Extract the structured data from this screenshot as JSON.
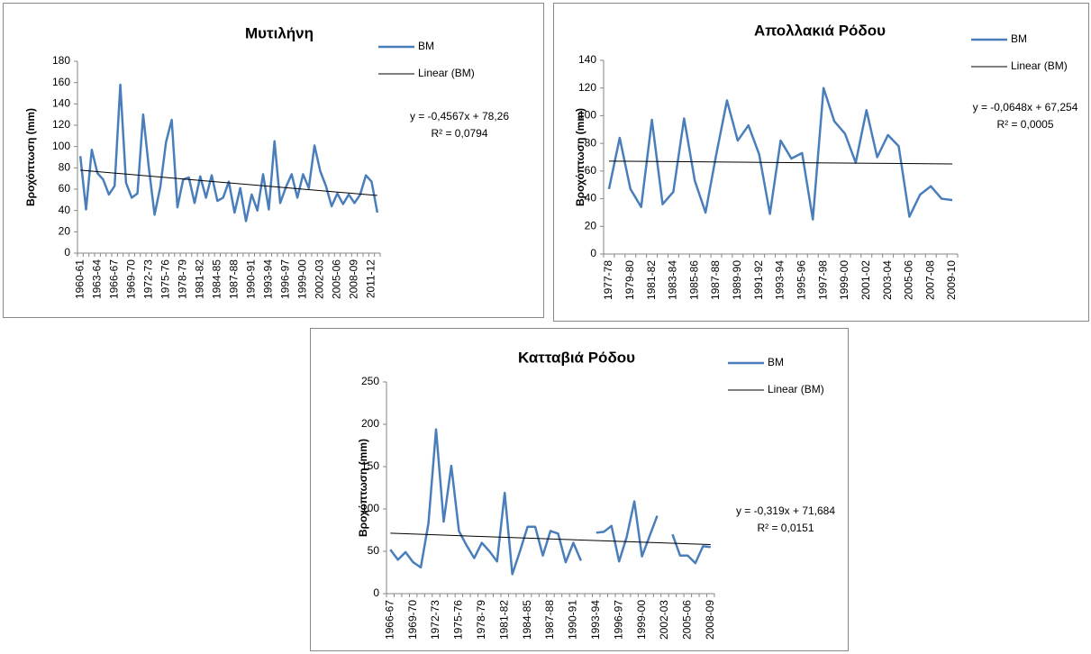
{
  "chart_data": [
    {
      "type": "line",
      "title": "Μυτιλήνη",
      "y_label": "Βροχόπτωση (mm)",
      "categories": [
        "1960-61",
        null,
        null,
        "1963-64",
        null,
        null,
        "1966-67",
        null,
        null,
        "1969-70",
        null,
        null,
        "1972-73",
        null,
        null,
        "1975-76",
        null,
        null,
        "1978-79",
        null,
        null,
        "1981-82",
        null,
        null,
        "1984-85",
        null,
        null,
        "1987-88",
        null,
        null,
        "1990-91",
        null,
        null,
        "1993-94",
        null,
        null,
        "1996-97",
        null,
        null,
        "1999-00",
        null,
        null,
        "2002-03",
        null,
        null,
        "2005-06",
        null,
        null,
        "2008-09",
        null,
        null,
        "2011-12",
        null
      ],
      "series": [
        {
          "name": "BM",
          "color": "#4a7ebb",
          "values": [
            91,
            41,
            97,
            75,
            69,
            55,
            63,
            158,
            66,
            52,
            56,
            130,
            80,
            36,
            62,
            104,
            125,
            43,
            69,
            71,
            47,
            72,
            52,
            73,
            49,
            52,
            67,
            38,
            61,
            30,
            55,
            40,
            74,
            41,
            105,
            47,
            62,
            74,
            52,
            74,
            61,
            101,
            77,
            63,
            44,
            56,
            46,
            55,
            47,
            55,
            73,
            67,
            38
          ]
        }
      ],
      "trendline": {
        "name": "Linear (BM)",
        "color": "#000000",
        "slope": -0.4567,
        "intercept": 78.26,
        "equation": "y = -0,4567x + 78,26",
        "r_squared": "R² = 0,0794"
      },
      "ylim": [
        0,
        180
      ],
      "yticks": [
        0,
        20,
        40,
        60,
        80,
        100,
        120,
        140,
        160,
        180
      ]
    },
    {
      "type": "line",
      "title": "Απολλακιά Ρόδου",
      "y_label": "Βροχόπτωση (mm)",
      "categories": [
        "1977-78",
        null,
        "1979-80",
        null,
        "1981-82",
        null,
        "1983-84",
        null,
        "1985-86",
        null,
        "1987-88",
        null,
        "1989-90",
        null,
        "1991-92",
        null,
        "1993-94",
        null,
        "1995-96",
        null,
        "1997-98",
        null,
        "1999-00",
        null,
        "2001-02",
        null,
        "2003-04",
        null,
        "2005-06",
        null,
        "2007-08",
        null,
        "2009-10"
      ],
      "series": [
        {
          "name": "BM",
          "color": "#4a7ebb",
          "values": [
            47,
            84,
            47,
            34,
            97,
            36,
            45,
            98,
            53,
            30,
            72,
            111,
            82,
            93,
            72,
            29,
            82,
            69,
            73,
            25,
            120,
            96,
            87,
            66,
            104,
            70,
            86,
            78,
            27,
            43,
            49,
            40,
            39
          ]
        }
      ],
      "trendline": {
        "name": "Linear (BM)",
        "color": "#000000",
        "slope": -0.0648,
        "intercept": 67.254,
        "equation": "y = -0,0648x + 67,254",
        "r_squared": "R² = 0,0005"
      },
      "ylim": [
        0,
        140
      ],
      "yticks": [
        0,
        20,
        40,
        60,
        80,
        100,
        120,
        140
      ]
    },
    {
      "type": "line",
      "title": "Κατταβιά Ρόδου",
      "y_label": "Βροχόπτωση (mm)",
      "categories": [
        "1966-67",
        null,
        null,
        "1969-70",
        null,
        null,
        "1972-73",
        null,
        null,
        "1975-76",
        null,
        null,
        "1978-79",
        null,
        null,
        "1981-82",
        null,
        null,
        "1984-85",
        null,
        null,
        "1987-88",
        null,
        null,
        "1990-91",
        null,
        null,
        "1993-94",
        null,
        null,
        "1996-97",
        null,
        null,
        "1999-00",
        null,
        null,
        "2002-03",
        null,
        null,
        "2005-06",
        null,
        null,
        "2008-09"
      ],
      "series": [
        {
          "name": "BM",
          "color": "#4a7ebb",
          "values": [
            52,
            40,
            49,
            37,
            31,
            83,
            194,
            85,
            151,
            74,
            57,
            42,
            60,
            50,
            38,
            119,
            23,
            50,
            79,
            79,
            45,
            74,
            71,
            37,
            60,
            39,
            null,
            72,
            73,
            80,
            38,
            67,
            109,
            44,
            68,
            92,
            null,
            70,
            45,
            45,
            36,
            56,
            55
          ]
        }
      ],
      "trendline": {
        "name": "Linear (BM)",
        "color": "#000000",
        "slope": -0.319,
        "intercept": 71.684,
        "equation": "y = -0,319x + 71,684",
        "r_squared": "R² = 0,0151"
      },
      "ylim": [
        0,
        250
      ],
      "yticks": [
        0,
        50,
        100,
        150,
        200,
        250
      ]
    }
  ]
}
